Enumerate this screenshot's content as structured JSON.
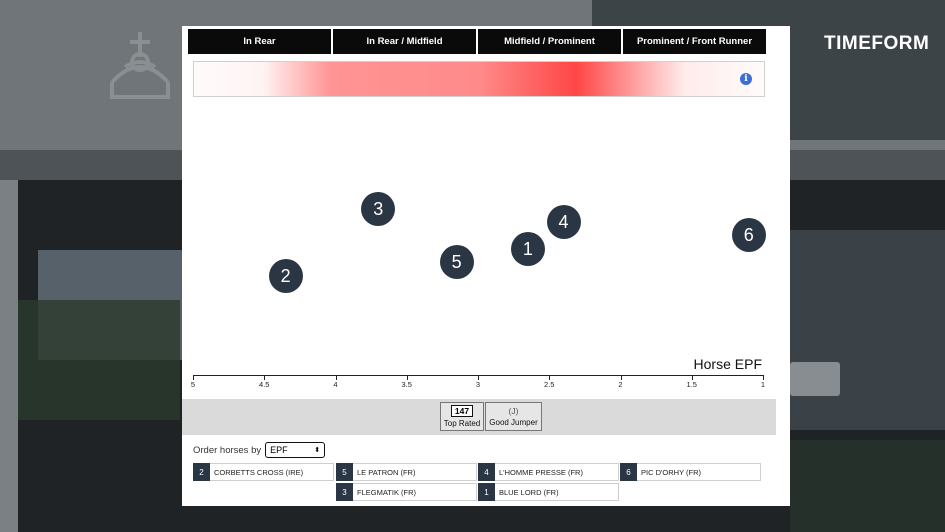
{
  "brand": "TIMEFORM",
  "position_tabs": [
    "In Rear",
    "In Rear / Midfield",
    "Midfield / Prominent",
    "Prominent / Front Runner"
  ],
  "info_icon": "info-icon",
  "axis": {
    "title": "Horse EPF",
    "ticks": [
      "5",
      "4.5",
      "4",
      "3.5",
      "3",
      "2.5",
      "2",
      "1.5",
      "1"
    ]
  },
  "horse_dots": [
    {
      "label": "3",
      "epf": 3.7,
      "level": "high"
    },
    {
      "label": "4",
      "epf": 2.4,
      "level": "mid-high"
    },
    {
      "label": "6",
      "epf": 1.1,
      "level": "mid"
    },
    {
      "label": "1",
      "epf": 2.65,
      "level": "mid-low"
    },
    {
      "label": "5",
      "epf": 3.15,
      "level": "low"
    },
    {
      "label": "2",
      "epf": 4.35,
      "level": "lowest"
    }
  ],
  "ratings": {
    "top_rated": {
      "value": "147",
      "label": "Top Rated"
    },
    "good_jumper": {
      "value": "(J)",
      "label": "Good Jumper"
    }
  },
  "order": {
    "label": "Order horses by",
    "selected": "EPF"
  },
  "horses": [
    {
      "num": "2",
      "name": "CORBETTS CROSS (IRE)"
    },
    {
      "num": "5",
      "name": "LE PATRON (FR)"
    },
    {
      "num": "4",
      "name": "L'HOMME PRESSE (FR)"
    },
    {
      "num": "6",
      "name": "PIC D'ORHY (FR)"
    },
    {
      "num": "3",
      "name": "FLEGMATIK (FR)"
    },
    {
      "num": "1",
      "name": "BLUE LORD (FR)"
    }
  ]
}
